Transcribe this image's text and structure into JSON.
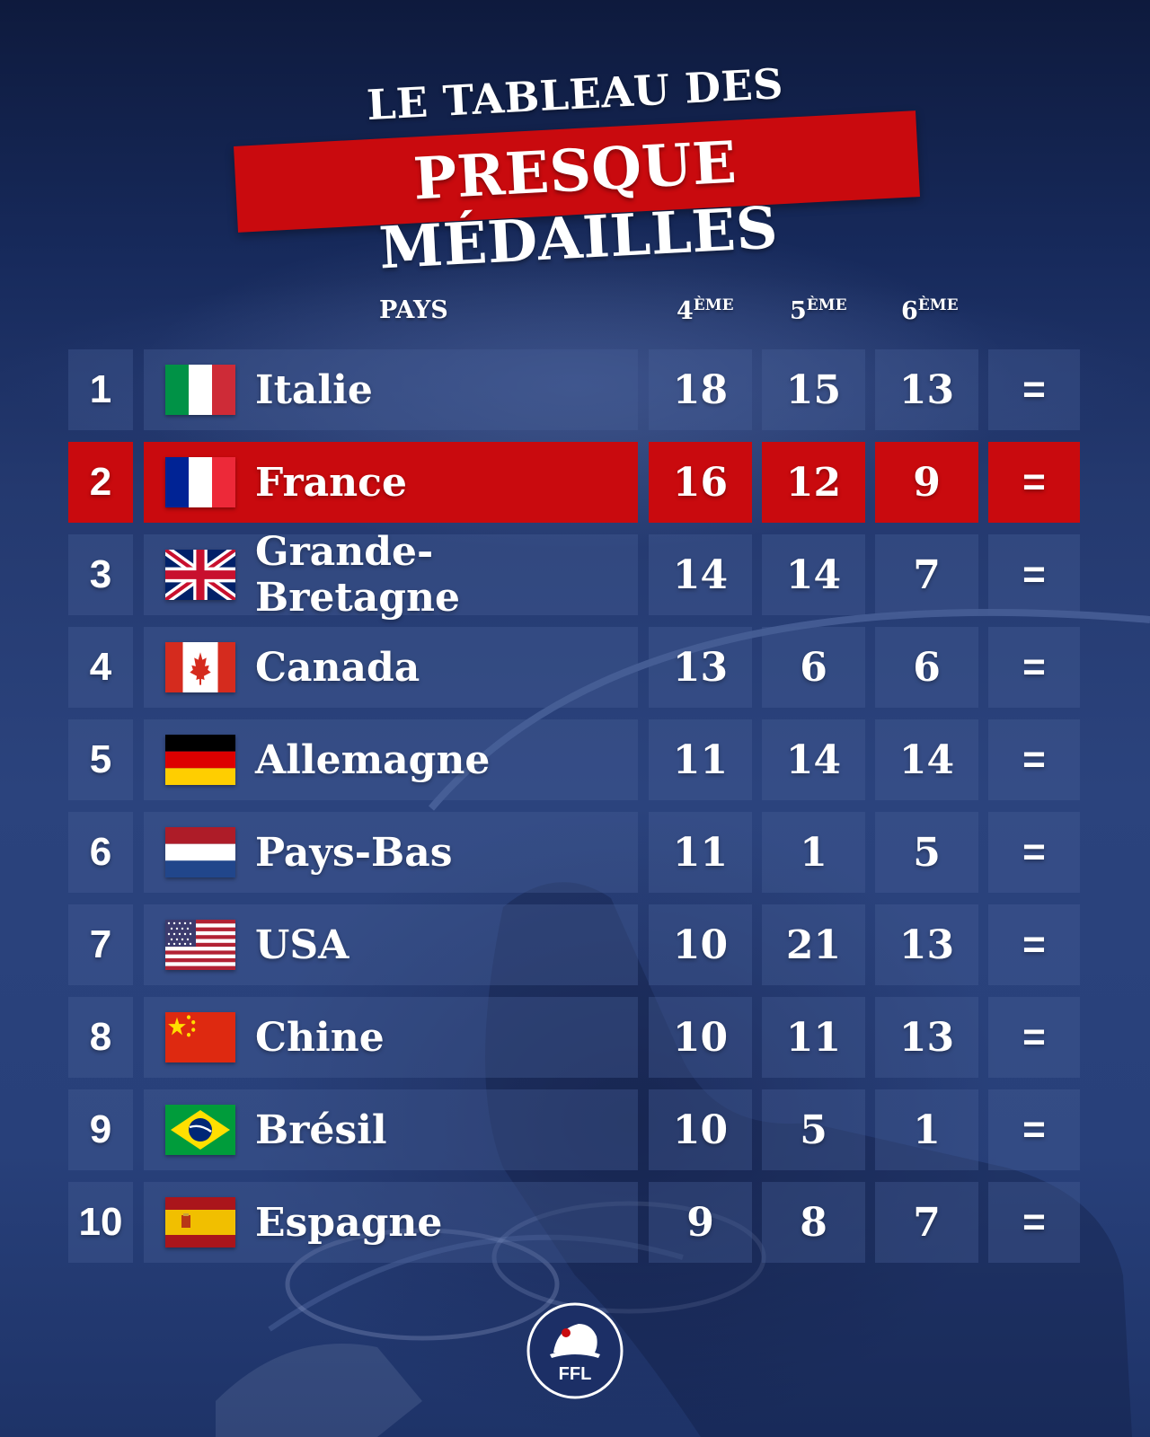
{
  "title": {
    "line1": "LE TABLEAU DES",
    "line2": "PRESQUE MÉDAILLES"
  },
  "headers": {
    "country": "PAYS",
    "fourth_num": "4",
    "fourth_sup": "ÈME",
    "fifth_num": "5",
    "fifth_sup": "ÈME",
    "sixth_num": "6",
    "sixth_sup": "ÈME"
  },
  "colors": {
    "highlight": "#c90a0e",
    "background": "#24396f"
  },
  "rows": [
    {
      "rank": "1",
      "country": "Italie",
      "flag": "italy-flag-icon",
      "fourth": "18",
      "fifth": "15",
      "sixth": "13",
      "evolution": "="
    },
    {
      "rank": "2",
      "country": "France",
      "flag": "france-flag-icon",
      "fourth": "16",
      "fifth": "12",
      "sixth": "9",
      "evolution": "=",
      "highlighted": true
    },
    {
      "rank": "3",
      "country": "Grande-Bretagne",
      "flag": "uk-flag-icon",
      "fourth": "14",
      "fifth": "14",
      "sixth": "7",
      "evolution": "="
    },
    {
      "rank": "4",
      "country": "Canada",
      "flag": "canada-flag-icon",
      "fourth": "13",
      "fifth": "6",
      "sixth": "6",
      "evolution": "="
    },
    {
      "rank": "5",
      "country": "Allemagne",
      "flag": "germany-flag-icon",
      "fourth": "11",
      "fifth": "14",
      "sixth": "14",
      "evolution": "="
    },
    {
      "rank": "6",
      "country": "Pays-Bas",
      "flag": "netherlands-flag-icon",
      "fourth": "11",
      "fifth": "1",
      "sixth": "5",
      "evolution": "="
    },
    {
      "rank": "7",
      "country": "USA",
      "flag": "usa-flag-icon",
      "fourth": "10",
      "fifth": "21",
      "sixth": "13",
      "evolution": "="
    },
    {
      "rank": "8",
      "country": "Chine",
      "flag": "china-flag-icon",
      "fourth": "10",
      "fifth": "11",
      "sixth": "13",
      "evolution": "="
    },
    {
      "rank": "9",
      "country": "Brésil",
      "flag": "brazil-flag-icon",
      "fourth": "10",
      "fifth": "5",
      "sixth": "1",
      "evolution": "="
    },
    {
      "rank": "10",
      "country": "Espagne",
      "flag": "spain-flag-icon",
      "fourth": "9",
      "fifth": "8",
      "sixth": "7",
      "evolution": "="
    }
  ],
  "logo": {
    "text": "FFL",
    "icon": "bicorne-hat-logo-icon"
  }
}
